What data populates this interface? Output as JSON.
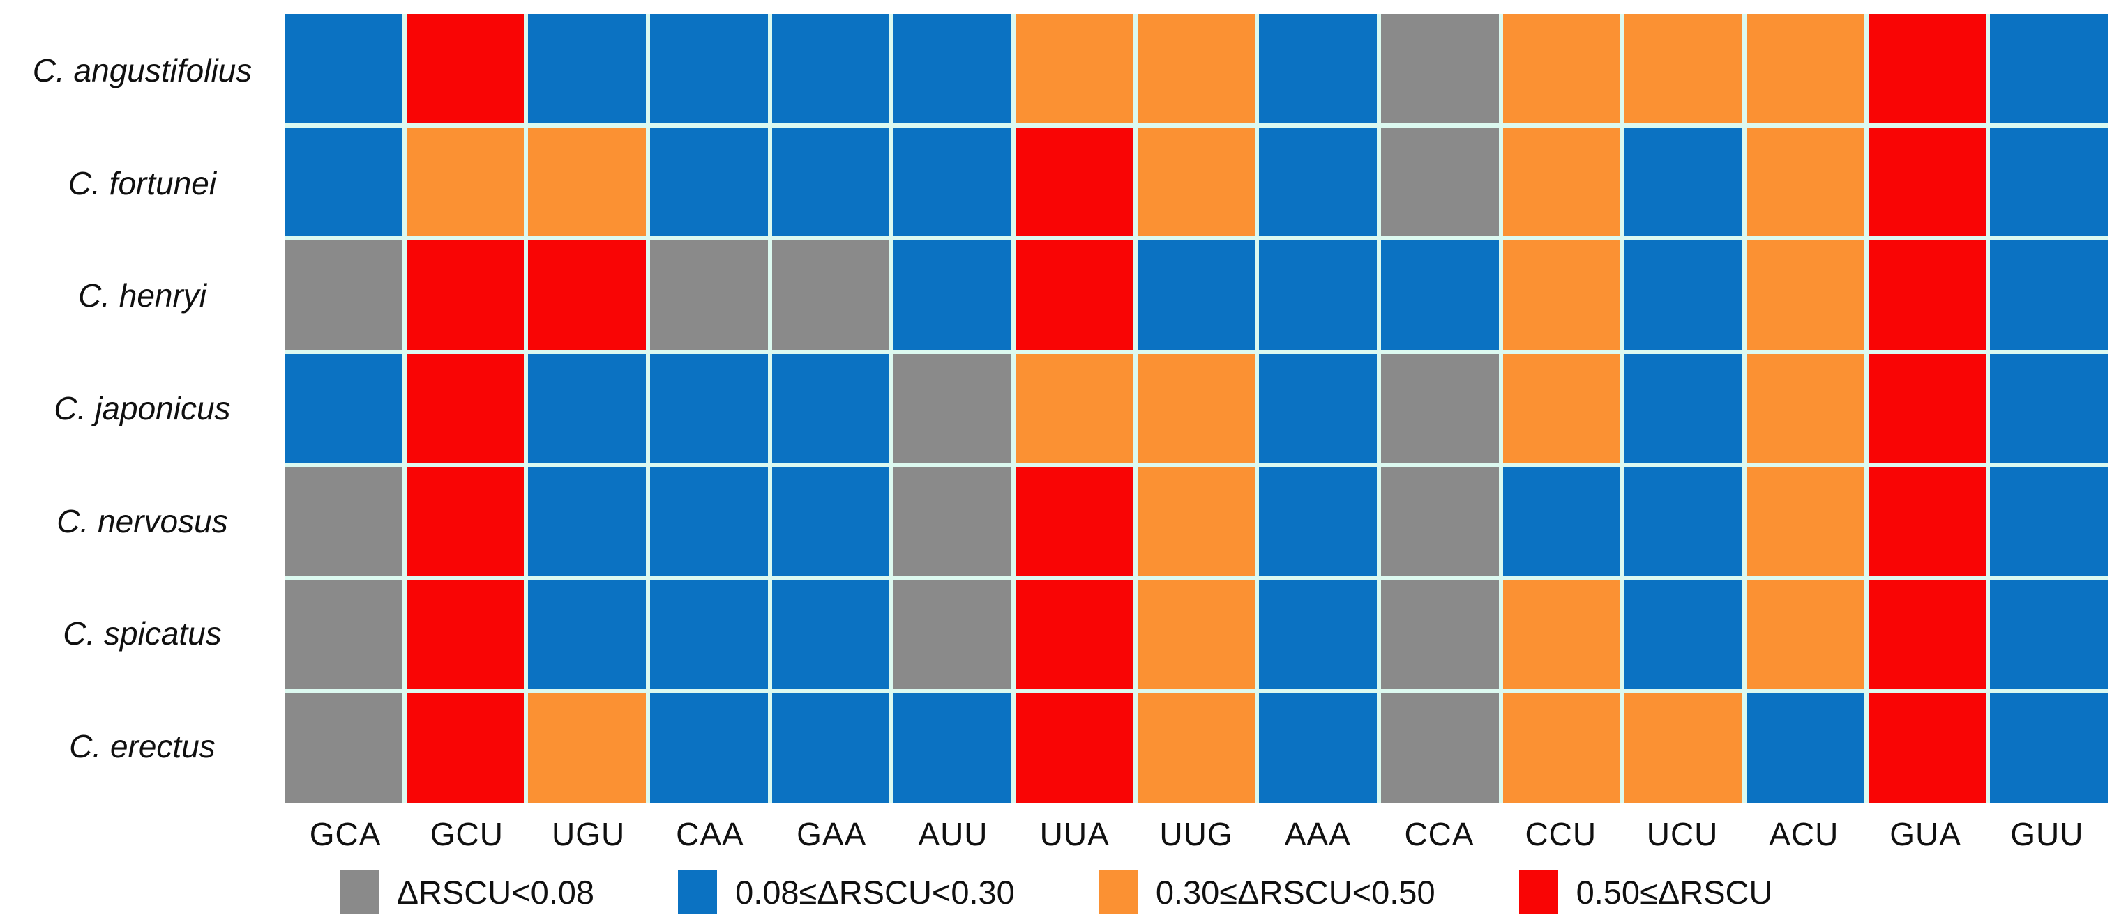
{
  "chart_data": {
    "type": "heatmap",
    "title": "",
    "xlabel": "",
    "ylabel": "",
    "legend_position": "bottom",
    "grid_line_color": "#dcf9f0",
    "rows": [
      "C. angustifolius",
      "C. fortunei",
      "C. henryi",
      "C. japonicus",
      "C. nervosus",
      "C. spicatus",
      "C. erectus"
    ],
    "columns": [
      "GCA",
      "GCU",
      "UGU",
      "CAA",
      "GAA",
      "AUU",
      "UUA",
      "UUG",
      "AAA",
      "CCA",
      "CCU",
      "UCU",
      "ACU",
      "GUA",
      "GUU"
    ],
    "bins": [
      {
        "label": "ΔRSCU<0.08",
        "color": "#8a8a8a",
        "name": "gray"
      },
      {
        "label": "0.08≤ΔRSCU<0.30",
        "color": "#0b72c2",
        "name": "blue"
      },
      {
        "label": "0.30≤ΔRSCU<0.50",
        "color": "#fb9133",
        "name": "orange"
      },
      {
        "label": "0.50≤ΔRSCU",
        "color": "#f90505",
        "name": "red"
      }
    ],
    "values": [
      [
        1,
        3,
        1,
        1,
        1,
        1,
        2,
        2,
        1,
        0,
        2,
        2,
        2,
        3,
        1
      ],
      [
        1,
        2,
        2,
        1,
        1,
        1,
        3,
        2,
        1,
        0,
        2,
        1,
        2,
        3,
        1
      ],
      [
        0,
        3,
        3,
        0,
        0,
        1,
        3,
        1,
        1,
        1,
        2,
        1,
        2,
        3,
        1
      ],
      [
        1,
        3,
        1,
        1,
        1,
        0,
        2,
        2,
        1,
        0,
        2,
        1,
        2,
        3,
        1
      ],
      [
        0,
        3,
        1,
        1,
        1,
        0,
        3,
        2,
        1,
        0,
        1,
        1,
        2,
        3,
        1
      ],
      [
        0,
        3,
        1,
        1,
        1,
        0,
        3,
        2,
        1,
        0,
        2,
        1,
        2,
        3,
        1
      ],
      [
        0,
        3,
        2,
        1,
        1,
        1,
        3,
        2,
        1,
        0,
        2,
        2,
        1,
        3,
        1
      ]
    ]
  }
}
